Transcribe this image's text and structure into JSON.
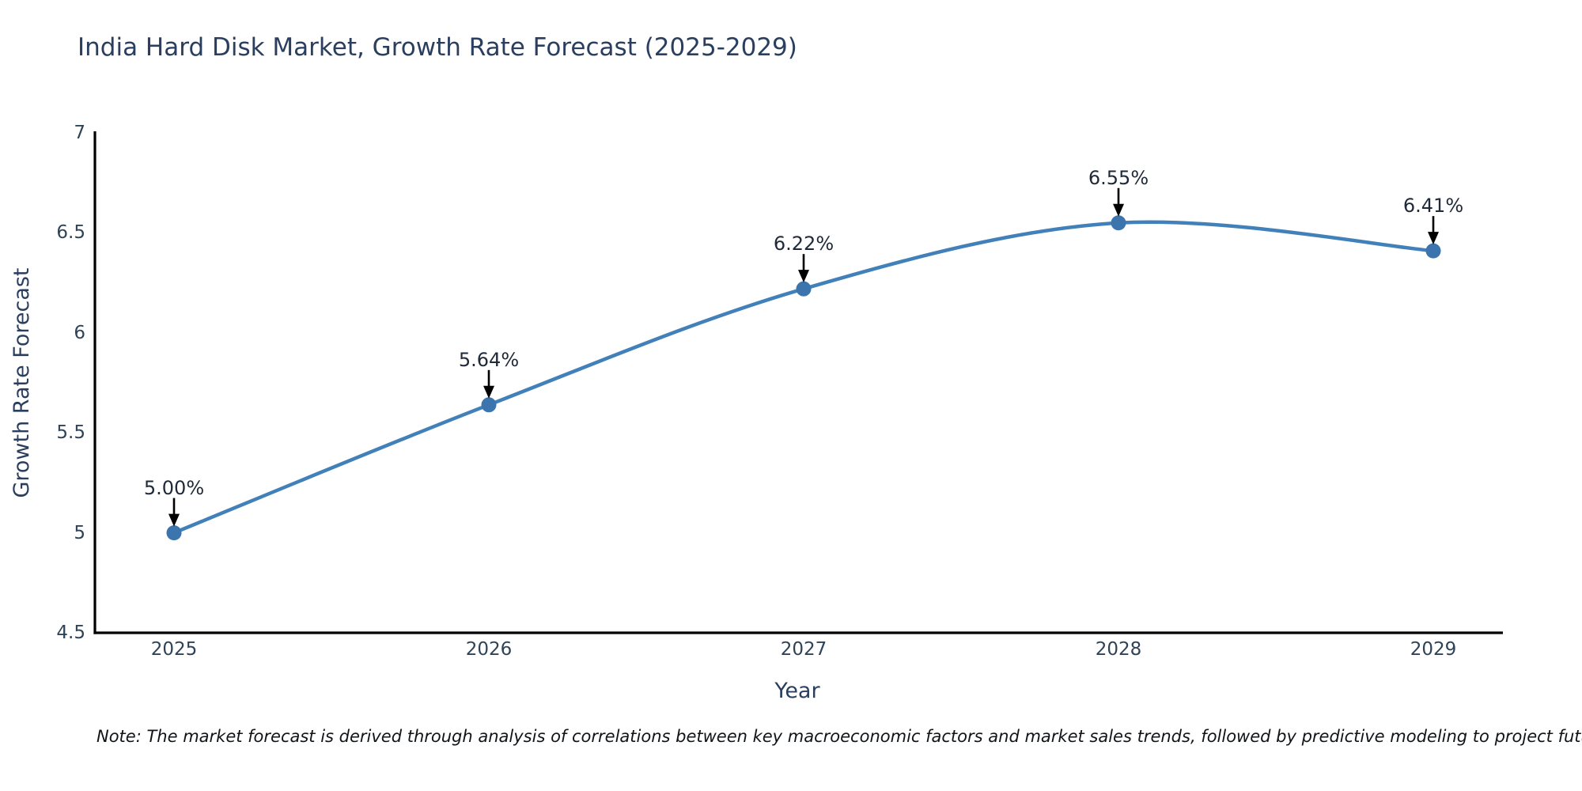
{
  "title": "India Hard Disk Market, Growth Rate Forecast (2025-2029)",
  "note": "Note: The market forecast is derived through analysis of correlations between key macroeconomic factors and market sales trends, followed by predictive modeling to project future sales",
  "chart_data": {
    "type": "line",
    "title": "India Hard Disk Market, Growth Rate Forecast (2025-2029)",
    "categories": [
      "2025",
      "2026",
      "2027",
      "2028",
      "2029"
    ],
    "x": [
      2025,
      2026,
      2027,
      2028,
      2029
    ],
    "series": [
      {
        "name": "Growth Rate Forecast",
        "values": [
          5.0,
          5.64,
          6.22,
          6.55,
          6.41
        ]
      }
    ],
    "point_labels": [
      "5.00%",
      "5.64%",
      "6.22%",
      "6.55%",
      "6.41%"
    ],
    "xlabel": "Year",
    "ylabel": "Growth Rate Forecast",
    "ylim": [
      4.5,
      7
    ],
    "y_ticks": [
      4.5,
      5,
      5.5,
      6,
      6.5,
      7
    ],
    "y_tick_labels": [
      "4.5",
      "5",
      "5.5",
      "6",
      "6.5",
      "7"
    ],
    "grid": false,
    "legend_position": "none",
    "line_style": "smooth",
    "colors": {
      "line": "#4180b8",
      "marker": "#3c74ae",
      "axis_line": "#000000",
      "annotation_arrow": "#000000",
      "annotation_text": "#1f2937",
      "tick_text": "#2f4358",
      "title_text": "#2a3f5f"
    }
  }
}
